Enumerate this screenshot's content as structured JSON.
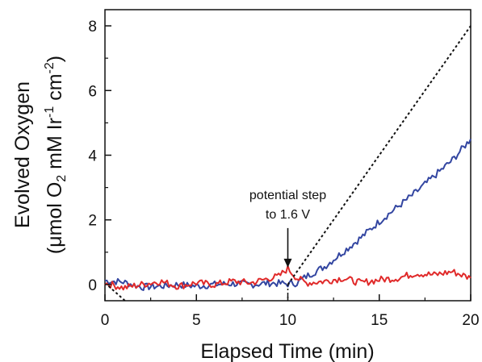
{
  "chart_data": {
    "type": "line",
    "title": "",
    "xlabel": "Elapsed Time (min)",
    "ylabel_line1": "Evolved Oxygen",
    "ylabel_line2": {
      "open": "(μmol O",
      "sub1": "2",
      "mid1": " mM Ir",
      "sup1": "-1",
      "mid2": " cm",
      "sup2": "-2",
      "close": ")"
    },
    "xlim": [
      0,
      20
    ],
    "ylim": [
      -0.5,
      8.5
    ],
    "xticks": [
      0,
      5,
      10,
      15,
      20
    ],
    "xtick_labels": [
      "0",
      "5",
      "10",
      "15",
      "20"
    ],
    "yticks": [
      0,
      2,
      4,
      6,
      8
    ],
    "ytick_labels": [
      "0",
      "2",
      "4",
      "6",
      "8"
    ],
    "grid": false,
    "legend": "none",
    "annotation": {
      "line1": "potential step",
      "line2": "to 1.6 V",
      "x": 10,
      "y": 0.5
    },
    "vline_x": 10,
    "series": [
      {
        "color": "#3346a1",
        "style": "solid",
        "points": [
          [
            0,
            0.12
          ],
          [
            1,
            0.08
          ],
          [
            2,
            -0.08
          ],
          [
            3,
            -0.05
          ],
          [
            4,
            0.0
          ],
          [
            5,
            -0.05
          ],
          [
            6,
            0.0
          ],
          [
            7,
            0.03
          ],
          [
            8,
            0.0
          ],
          [
            9,
            0.05
          ],
          [
            10,
            0.02
          ],
          [
            10.5,
            0.05
          ],
          [
            11,
            0.25
          ],
          [
            12,
            0.55
          ],
          [
            13,
            1.0
          ],
          [
            14,
            1.45
          ],
          [
            15,
            1.95
          ],
          [
            16,
            2.4
          ],
          [
            17,
            2.85
          ],
          [
            18,
            3.35
          ],
          [
            19,
            3.85
          ],
          [
            20,
            4.5
          ]
        ]
      },
      {
        "color": "#e02a2a",
        "style": "solid",
        "points": [
          [
            0,
            0.05
          ],
          [
            1,
            -0.1
          ],
          [
            2,
            0.0
          ],
          [
            3,
            0.1
          ],
          [
            4,
            -0.05
          ],
          [
            5,
            0.05
          ],
          [
            6,
            0.0
          ],
          [
            7,
            0.1
          ],
          [
            8,
            0.05
          ],
          [
            9,
            0.2
          ],
          [
            9.5,
            0.25
          ],
          [
            10,
            0.5
          ],
          [
            10.5,
            0.2
          ],
          [
            11,
            0.05
          ],
          [
            12,
            0.1
          ],
          [
            13,
            0.2
          ],
          [
            14,
            0.05
          ],
          [
            15,
            0.15
          ],
          [
            16,
            0.2
          ],
          [
            17,
            0.35
          ],
          [
            18,
            0.3
          ],
          [
            19,
            0.4
          ],
          [
            20,
            0.2
          ]
        ]
      },
      {
        "color": "#111111",
        "style": "dotted",
        "points": [
          [
            10,
            0.0
          ],
          [
            20,
            8.0
          ]
        ]
      },
      {
        "color": "#111111",
        "style": "dotted",
        "points": [
          [
            0.2,
            -0.05
          ],
          [
            1.1,
            -0.5
          ]
        ]
      }
    ]
  }
}
